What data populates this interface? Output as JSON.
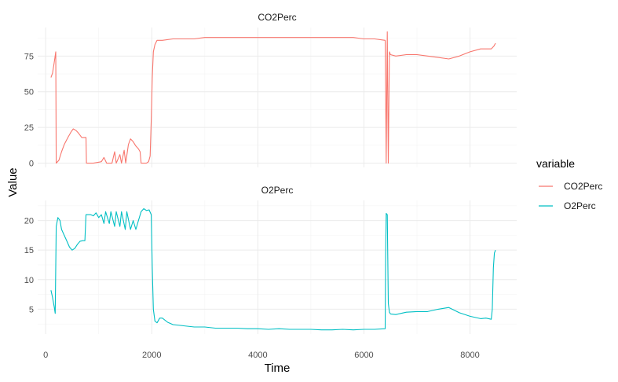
{
  "chart_data": {
    "type": "line",
    "xlabel": "Time",
    "ylabel": "Value",
    "legend": {
      "title": "variable",
      "placement": "right",
      "entries": [
        {
          "name": "CO2Perc",
          "color": "#F8766D"
        },
        {
          "name": "O2Perc",
          "color": "#00BFC4"
        }
      ]
    },
    "x_ticks": [
      0,
      2000,
      4000,
      6000,
      8000
    ],
    "xlim": [
      -150,
      8880
    ],
    "grid": true,
    "panels": [
      {
        "title": "CO2Perc",
        "series": "CO2Perc",
        "color": "#F8766D",
        "ylim": [
          -3,
          95
        ],
        "y_ticks": [
          0,
          25,
          50,
          75
        ],
        "points": [
          [
            100,
            60
          ],
          [
            130,
            63
          ],
          [
            160,
            70
          ],
          [
            190,
            78
          ],
          [
            200,
            0
          ],
          [
            250,
            2
          ],
          [
            300,
            8
          ],
          [
            350,
            13
          ],
          [
            420,
            18
          ],
          [
            480,
            22
          ],
          [
            520,
            24
          ],
          [
            570,
            23
          ],
          [
            620,
            21
          ],
          [
            680,
            18
          ],
          [
            720,
            18
          ],
          [
            760,
            18
          ],
          [
            770,
            0
          ],
          [
            900,
            0
          ],
          [
            1050,
            1
          ],
          [
            1100,
            4
          ],
          [
            1150,
            0
          ],
          [
            1250,
            0
          ],
          [
            1300,
            8
          ],
          [
            1330,
            0
          ],
          [
            1400,
            6
          ],
          [
            1430,
            0
          ],
          [
            1480,
            9
          ],
          [
            1510,
            0
          ],
          [
            1560,
            13
          ],
          [
            1600,
            17
          ],
          [
            1650,
            15
          ],
          [
            1700,
            12
          ],
          [
            1750,
            10
          ],
          [
            1780,
            8
          ],
          [
            1800,
            0
          ],
          [
            1900,
            0
          ],
          [
            1940,
            1
          ],
          [
            1970,
            5
          ],
          [
            1990,
            30
          ],
          [
            2010,
            60
          ],
          [
            2030,
            78
          ],
          [
            2060,
            83
          ],
          [
            2100,
            86
          ],
          [
            2200,
            86
          ],
          [
            2400,
            87
          ],
          [
            2600,
            87
          ],
          [
            2800,
            87
          ],
          [
            3000,
            88
          ],
          [
            3200,
            88
          ],
          [
            3400,
            88
          ],
          [
            3600,
            88
          ],
          [
            3800,
            88
          ],
          [
            4000,
            88
          ],
          [
            4200,
            88
          ],
          [
            4400,
            88
          ],
          [
            4600,
            88
          ],
          [
            4800,
            88
          ],
          [
            5000,
            88
          ],
          [
            5200,
            88
          ],
          [
            5400,
            88
          ],
          [
            5600,
            88
          ],
          [
            5800,
            88
          ],
          [
            6000,
            87
          ],
          [
            6200,
            87
          ],
          [
            6400,
            86
          ],
          [
            6410,
            50
          ],
          [
            6420,
            0
          ],
          [
            6440,
            92
          ],
          [
            6460,
            0
          ],
          [
            6480,
            78
          ],
          [
            6500,
            76
          ],
          [
            6600,
            75
          ],
          [
            6800,
            76
          ],
          [
            7000,
            76
          ],
          [
            7200,
            75
          ],
          [
            7400,
            74
          ],
          [
            7600,
            73
          ],
          [
            7800,
            75
          ],
          [
            8000,
            78
          ],
          [
            8200,
            80
          ],
          [
            8400,
            80
          ],
          [
            8450,
            82
          ],
          [
            8480,
            84
          ]
        ]
      },
      {
        "title": "O2Perc",
        "series": "O2Perc",
        "color": "#00BFC4",
        "ylim": [
          0.8,
          23.4
        ],
        "y_ticks": [
          5,
          10,
          15,
          20
        ],
        "points": [
          [
            100,
            8.2
          ],
          [
            130,
            7
          ],
          [
            160,
            5.5
          ],
          [
            180,
            4.3
          ],
          [
            200,
            19
          ],
          [
            230,
            20.5
          ],
          [
            270,
            20
          ],
          [
            300,
            18.5
          ],
          [
            350,
            17.5
          ],
          [
            400,
            16.5
          ],
          [
            450,
            15.5
          ],
          [
            500,
            15
          ],
          [
            550,
            15.3
          ],
          [
            600,
            16
          ],
          [
            650,
            16.5
          ],
          [
            700,
            16.6
          ],
          [
            740,
            16.6
          ],
          [
            760,
            21
          ],
          [
            800,
            21
          ],
          [
            850,
            21
          ],
          [
            900,
            20.8
          ],
          [
            950,
            21.3
          ],
          [
            1000,
            20.5
          ],
          [
            1050,
            21
          ],
          [
            1100,
            19.5
          ],
          [
            1130,
            21.5
          ],
          [
            1200,
            19.5
          ],
          [
            1230,
            21.5
          ],
          [
            1300,
            19
          ],
          [
            1330,
            21.5
          ],
          [
            1400,
            19
          ],
          [
            1430,
            21.5
          ],
          [
            1500,
            18.5
          ],
          [
            1530,
            21.5
          ],
          [
            1600,
            18.5
          ],
          [
            1650,
            20
          ],
          [
            1700,
            18.5
          ],
          [
            1750,
            20
          ],
          [
            1800,
            21.5
          ],
          [
            1850,
            22
          ],
          [
            1900,
            21.7
          ],
          [
            1950,
            21.8
          ],
          [
            1990,
            21
          ],
          [
            2010,
            12
          ],
          [
            2030,
            5
          ],
          [
            2060,
            3
          ],
          [
            2100,
            2.7
          ],
          [
            2150,
            3.5
          ],
          [
            2200,
            3.5
          ],
          [
            2300,
            2.8
          ],
          [
            2400,
            2.4
          ],
          [
            2600,
            2.2
          ],
          [
            2800,
            2
          ],
          [
            3000,
            2
          ],
          [
            3200,
            1.8
          ],
          [
            3400,
            1.8
          ],
          [
            3600,
            1.8
          ],
          [
            3800,
            1.7
          ],
          [
            4000,
            1.7
          ],
          [
            4200,
            1.6
          ],
          [
            4400,
            1.7
          ],
          [
            4600,
            1.6
          ],
          [
            4800,
            1.6
          ],
          [
            5000,
            1.6
          ],
          [
            5200,
            1.5
          ],
          [
            5400,
            1.5
          ],
          [
            5600,
            1.6
          ],
          [
            5800,
            1.5
          ],
          [
            6000,
            1.6
          ],
          [
            6200,
            1.6
          ],
          [
            6400,
            1.7
          ],
          [
            6410,
            14
          ],
          [
            6420,
            21.2
          ],
          [
            6440,
            21
          ],
          [
            6460,
            6
          ],
          [
            6480,
            4.5
          ],
          [
            6500,
            4.2
          ],
          [
            6600,
            4.1
          ],
          [
            6700,
            4.3
          ],
          [
            6800,
            4.5
          ],
          [
            7000,
            4.6
          ],
          [
            7200,
            4.6
          ],
          [
            7400,
            5
          ],
          [
            7600,
            5.3
          ],
          [
            7800,
            4.4
          ],
          [
            8000,
            3.8
          ],
          [
            8200,
            3.4
          ],
          [
            8300,
            3.5
          ],
          [
            8400,
            3.3
          ],
          [
            8420,
            5
          ],
          [
            8440,
            12
          ],
          [
            8460,
            14.5
          ],
          [
            8480,
            15
          ]
        ]
      }
    ]
  }
}
